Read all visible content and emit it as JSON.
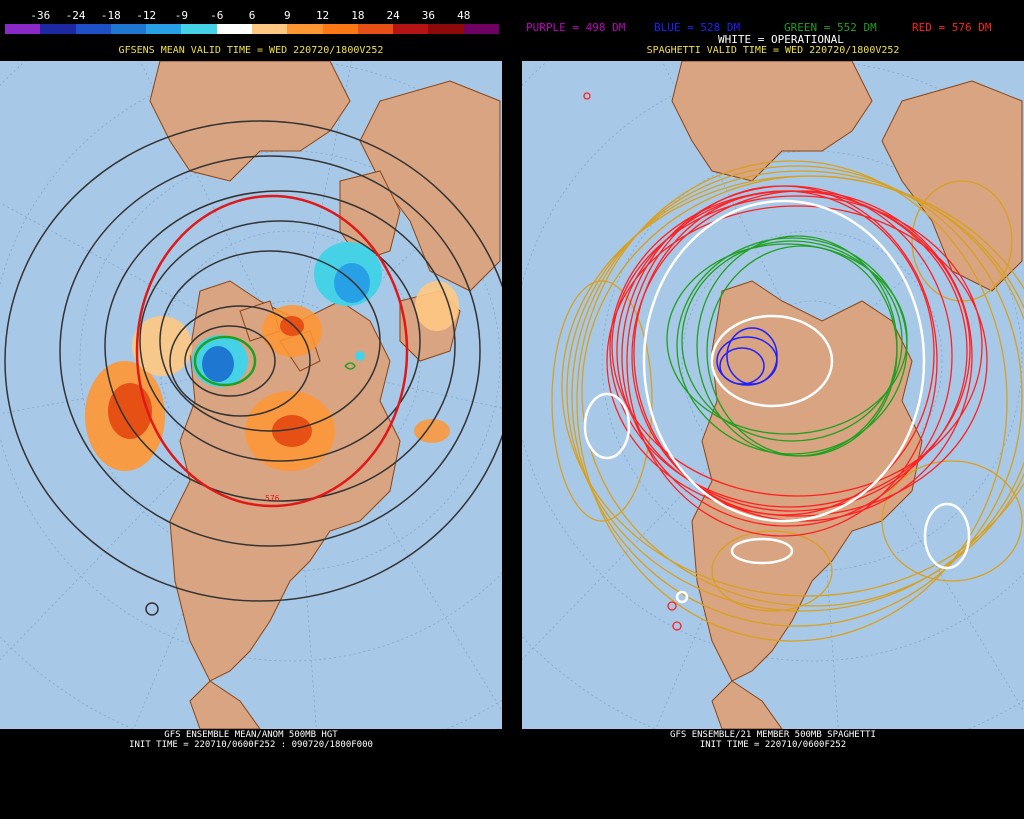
{
  "left_panel": {
    "legend_labels": [
      "-36",
      "-24",
      "-18",
      "-12",
      "-9",
      "-6",
      "6",
      "9",
      "12",
      "18",
      "24",
      "36",
      "48"
    ],
    "legend_colors": [
      "#8a28c8",
      "#1e28a0",
      "#1e50c8",
      "#1e78d2",
      "#28a0e6",
      "#46d2e6",
      "#ffffff",
      "#ffc882",
      "#ff9632",
      "#ff7814",
      "#e65014",
      "#b41414",
      "#8c0a0a",
      "#6e0064"
    ],
    "valid_time": "GFSENS MEAN VALID TIME = WED 220720/1800V252",
    "contour_label": "576",
    "footer_line1": "GFS ENSEMBLE MEAN/ANOM 500MB HGT",
    "footer_line2": "INIT TIME = 220710/0600F252 : 090720/1800F000"
  },
  "right_panel": {
    "header": {
      "purple": "PURPLE = 498 DM",
      "blue": "BLUE = 528 DM",
      "green": "GREEN = 552 DM",
      "red": "RED = 576 DM",
      "white": "WHITE = OPERATIONAL"
    },
    "colors": {
      "purple": "#c000c0",
      "blue": "#2020ff",
      "green": "#20a020",
      "red": "#ff2020",
      "white": "#ffffff",
      "gold": "#d8a020"
    },
    "valid_time": "SPAGHETTI VALID TIME = WED 220720/1800V252",
    "footer_line1": "GFS ENSEMBLE/21 MEMBER 500MB SPAGHETTI",
    "footer_line2": "INIT TIME = 220710/0600F252"
  }
}
